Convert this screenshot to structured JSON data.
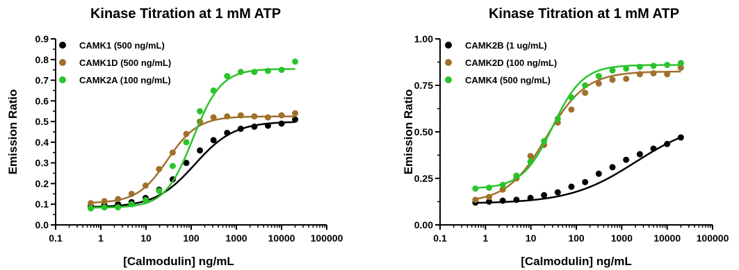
{
  "chart_data": [
    {
      "type": "scatter",
      "title": "Kinase Titration at 1 mM ATP",
      "xlabel": "[Calmodulin] ng/mL",
      "ylabel": "Emission Ratio",
      "xscale": "log",
      "xlim": [
        0.1,
        100000
      ],
      "ylim": [
        0,
        0.9
      ],
      "xticks": [
        "0.1",
        "1",
        "10",
        "100",
        "1000",
        "10000",
        "100000"
      ],
      "yticks": [
        "0.0",
        "0.1",
        "0.2",
        "0.3",
        "0.4",
        "0.5",
        "0.6",
        "0.7",
        "0.8",
        "0.9"
      ],
      "grid": false,
      "legend_position": "top-left",
      "x": [
        0.6,
        1.2,
        2.4,
        4.8,
        9.8,
        19.5,
        39,
        78,
        156,
        312,
        625,
        1250,
        2500,
        5000,
        10000,
        20000
      ],
      "series": [
        {
          "name": "CAMK1 (500 ng/mL)",
          "color": "#000000",
          "values": [
            0.09,
            0.095,
            0.1,
            0.11,
            0.13,
            0.17,
            0.22,
            0.3,
            0.36,
            0.41,
            0.445,
            0.465,
            0.475,
            0.48,
            0.49,
            0.51
          ],
          "fit": {
            "bottom": 0.085,
            "top": 0.5,
            "ec50": 120,
            "hill": 1.0
          }
        },
        {
          "name": "CAMK1D (500 ng/mL)",
          "color": "#A0702C",
          "values": [
            0.105,
            0.115,
            0.125,
            0.15,
            0.19,
            0.27,
            0.35,
            0.44,
            0.5,
            0.52,
            0.525,
            0.53,
            0.525,
            0.52,
            0.53,
            0.54
          ],
          "fit": {
            "bottom": 0.105,
            "top": 0.525,
            "ec50": 30,
            "hill": 1.3
          }
        },
        {
          "name": "CAMK2A (100 ng/mL)",
          "color": "#2BC32B",
          "values": [
            0.08,
            0.085,
            0.085,
            0.1,
            0.12,
            0.165,
            0.285,
            0.4,
            0.55,
            0.65,
            0.72,
            0.74,
            0.74,
            0.745,
            0.75,
            0.79
          ],
          "fit": {
            "bottom": 0.083,
            "top": 0.755,
            "ec50": 110,
            "hill": 1.4
          }
        }
      ]
    },
    {
      "type": "scatter",
      "title": "Kinase Titration at 1 mM ATP",
      "xlabel": "[Calmodulin] ng/mL",
      "ylabel": "Emission Ratio",
      "xscale": "log",
      "xlim": [
        0.1,
        100000
      ],
      "ylim": [
        0,
        1.0
      ],
      "xticks": [
        "0.1",
        "1",
        "10",
        "100",
        "1000",
        "10000",
        "100000"
      ],
      "yticks": [
        "0.00",
        "0.25",
        "0.50",
        "0.75",
        "1.00"
      ],
      "grid": false,
      "legend_position": "top-left",
      "x": [
        0.6,
        1.2,
        2.4,
        4.8,
        9.8,
        19.5,
        39,
        78,
        156,
        312,
        625,
        1250,
        2500,
        5000,
        10000,
        20000
      ],
      "series": [
        {
          "name": "CAMK2B (1 ug/mL)",
          "color": "#000000",
          "values": [
            0.12,
            0.125,
            0.13,
            0.135,
            0.145,
            0.16,
            0.175,
            0.205,
            0.23,
            0.275,
            0.31,
            0.35,
            0.38,
            0.41,
            0.435,
            0.47
          ],
          "fit": {
            "bottom": 0.115,
            "top": 0.56,
            "ec50": 2000,
            "hill": 0.6
          }
        },
        {
          "name": "CAMK2D (100 ng/mL)",
          "color": "#A0702C",
          "values": [
            0.135,
            0.15,
            0.19,
            0.25,
            0.37,
            0.43,
            0.55,
            0.62,
            0.71,
            0.76,
            0.78,
            0.785,
            0.81,
            0.815,
            0.81,
            0.845
          ],
          "fit": {
            "bottom": 0.12,
            "top": 0.825,
            "ec50": 22,
            "hill": 1.0
          }
        },
        {
          "name": "CAMK4 (500 ng/mL)",
          "color": "#2BC32B",
          "values": [
            0.195,
            0.2,
            0.215,
            0.265,
            0.34,
            0.45,
            0.57,
            0.685,
            0.75,
            0.8,
            0.83,
            0.84,
            0.85,
            0.855,
            0.86,
            0.87
          ],
          "fit": {
            "bottom": 0.195,
            "top": 0.86,
            "ec50": 30,
            "hill": 1.3
          }
        }
      ]
    }
  ]
}
